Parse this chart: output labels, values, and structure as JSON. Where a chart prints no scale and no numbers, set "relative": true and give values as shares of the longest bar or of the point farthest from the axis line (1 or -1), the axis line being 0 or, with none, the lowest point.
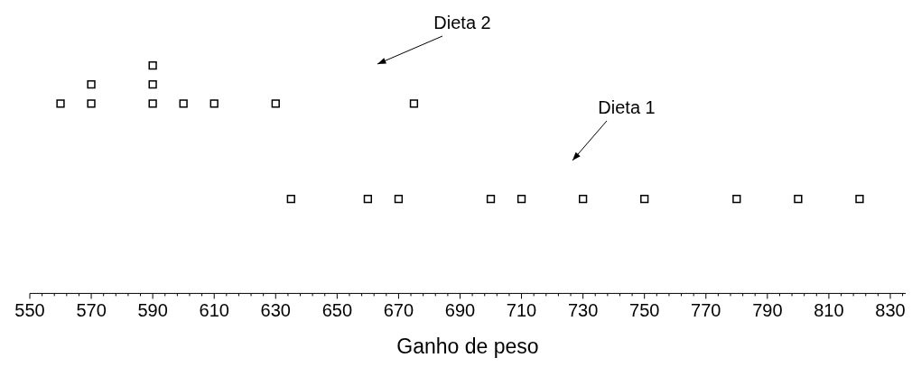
{
  "chart_data": {
    "type": "scatter",
    "xlabel": "Ganho de peso",
    "relative": true,
    "marker": "square",
    "grid": false,
    "legend": false,
    "tick_labels": "x",
    "xlim": [
      550,
      835
    ],
    "xticks": [
      550,
      {
        "value": 554,
        "label": null
      },
      {
        "value": 558,
        "label": null
      },
      {
        "value": 562,
        "label": null
      },
      {
        "value": 566,
        "label": null
      },
      570,
      {
        "value": 574,
        "label": null
      },
      {
        "value": 578,
        "label": null
      },
      {
        "value": 582,
        "label": null
      },
      {
        "value": 586,
        "label": null
      },
      590,
      {
        "value": 594,
        "label": null
      },
      {
        "value": 598,
        "label": null
      },
      {
        "value": 602,
        "label": null
      },
      {
        "value": 606,
        "label": null
      },
      610,
      {
        "value": 614,
        "label": null
      },
      {
        "value": 618,
        "label": null
      },
      {
        "value": 622,
        "label": null
      },
      {
        "value": 626,
        "label": null
      },
      630,
      {
        "value": 634,
        "label": null
      },
      {
        "value": 638,
        "label": null
      },
      {
        "value": 642,
        "label": null
      },
      {
        "value": 646,
        "label": null
      },
      650,
      {
        "value": 654,
        "label": null
      },
      {
        "value": 658,
        "label": null
      },
      {
        "value": 662,
        "label": null
      },
      {
        "value": 666,
        "label": null
      },
      670,
      {
        "value": 674,
        "label": null
      },
      {
        "value": 678,
        "label": null
      },
      {
        "value": 682,
        "label": null
      },
      {
        "value": 686,
        "label": null
      },
      690,
      {
        "value": 694,
        "label": null
      },
      {
        "value": 698,
        "label": null
      },
      {
        "value": 702,
        "label": null
      },
      {
        "value": 706,
        "label": null
      },
      710,
      {
        "value": 714,
        "label": null
      },
      {
        "value": 718,
        "label": null
      },
      {
        "value": 722,
        "label": null
      },
      {
        "value": 726,
        "label": null
      },
      730,
      {
        "value": 734,
        "label": null
      },
      {
        "value": 738,
        "label": null
      },
      {
        "value": 742,
        "label": null
      },
      {
        "value": 746,
        "label": null
      },
      750,
      {
        "value": 754,
        "label": null
      },
      {
        "value": 758,
        "label": null
      },
      {
        "value": 762,
        "label": null
      },
      {
        "value": 766,
        "label": null
      },
      770,
      {
        "value": 774,
        "label": null
      },
      {
        "value": 778,
        "label": null
      },
      {
        "value": 782,
        "label": null
      },
      {
        "value": 786,
        "label": null
      },
      790,
      {
        "value": 794,
        "label": null
      },
      {
        "value": 798,
        "label": null
      },
      {
        "value": 802,
        "label": null
      },
      {
        "value": 806,
        "label": null
      },
      810,
      {
        "value": 814,
        "label": null
      },
      {
        "value": 818,
        "label": null
      },
      {
        "value": 822,
        "label": null
      },
      {
        "value": 826,
        "label": null
      },
      830,
      {
        "value": 834,
        "label": null
      }
    ],
    "series": [
      {
        "color": "#000000",
        "x": [
          635,
          660,
          670,
          700,
          710,
          730,
          750,
          780,
          800,
          820
        ],
        "values": [
          0.415,
          0.415,
          0.415,
          0.415,
          0.415,
          0.415,
          0.415,
          0.415,
          0.415,
          0.415
        ]
      },
      {
        "color": "#000000",
        "x": [
          560,
          570,
          570,
          590,
          590,
          590,
          600,
          610,
          630,
          675
        ],
        "values": [
          0.833,
          0.833,
          0.917,
          0.833,
          0.917,
          1,
          0.833,
          0.833,
          0.833,
          0.833
        ]
      }
    ],
    "annotations": [
      "Dieta 2",
      "Dieta 1"
    ]
  }
}
